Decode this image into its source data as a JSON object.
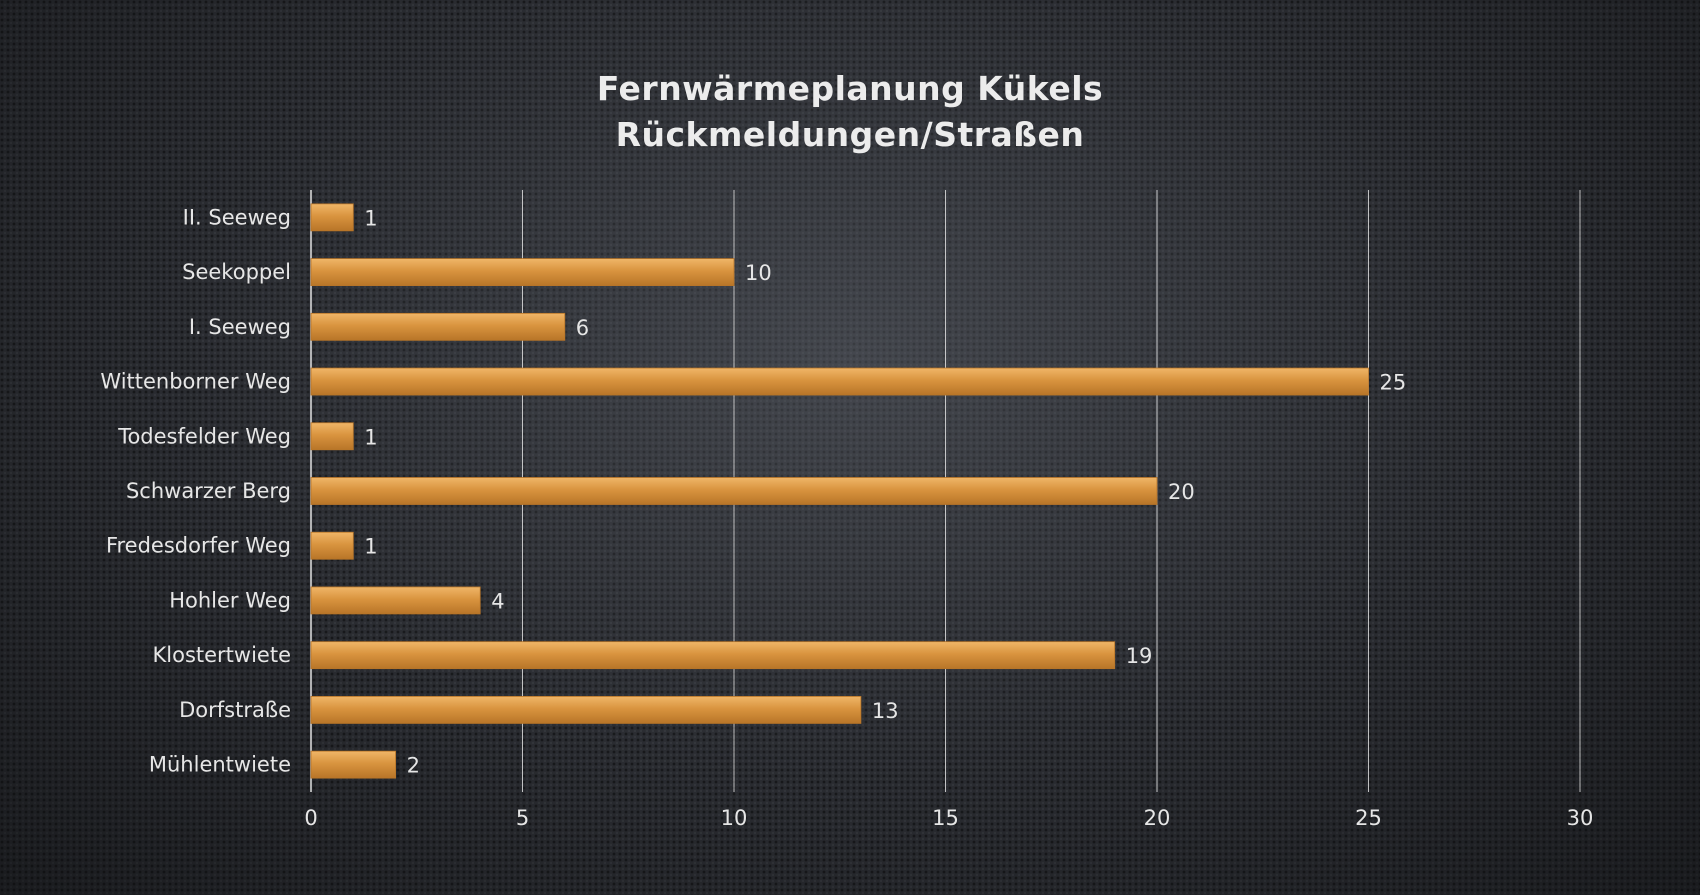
{
  "chart_data": {
    "type": "bar",
    "orientation": "horizontal",
    "title_lines": [
      "Fernwärmeplanung  Kükels",
      "Rückmeldungen/Straßen"
    ],
    "categories": [
      "II. Seeweg",
      "Seekoppel",
      "I. Seeweg",
      "Wittenborner Weg",
      "Todesfelder Weg",
      "Schwarzer Berg",
      "Fredesdorfer Weg",
      "Hohler Weg",
      "Klostertwiete",
      "Dorfstraße",
      "Mühlentwiete"
    ],
    "values": [
      1,
      10,
      6,
      25,
      1,
      20,
      1,
      4,
      19,
      13,
      2
    ],
    "xlim": [
      0,
      30
    ],
    "xticks": [
      0,
      5,
      10,
      15,
      20,
      25,
      30
    ],
    "grid": true,
    "data_labels": true,
    "legend": "none",
    "colors": {
      "bar": "#d9943f",
      "bar_light": "#f0b668",
      "bar_dark": "#b87528",
      "grid": "#e8e8e8",
      "text": "#e6e6e6",
      "background": "#2a2c31"
    }
  }
}
